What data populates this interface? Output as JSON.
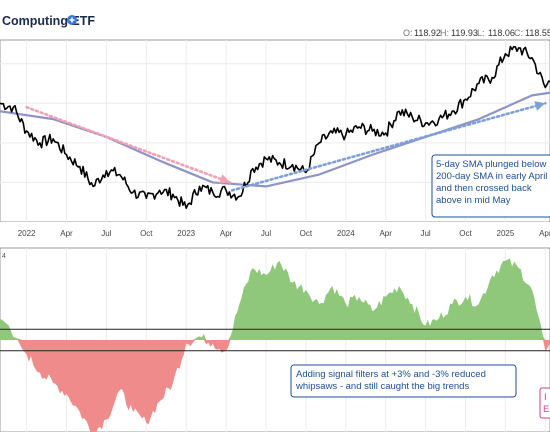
{
  "header": {
    "title": "Computing ETF",
    "ohlc": [
      {
        "key": "O:",
        "value": "118.92"
      },
      {
        "key": "H:",
        "value": "119.93"
      },
      {
        "key": "L:",
        "value": "118.06"
      },
      {
        "key": "C:",
        "value": "118.55"
      }
    ]
  },
  "annotations": {
    "price_box": [
      "5-day SMA plunged below",
      "200-day SMA in early April",
      "and then crossed back",
      "above in mid May"
    ],
    "osc_box": [
      "Adding signal filters at +3% and -3% reduced",
      "whipsaws - and still caught the big trends"
    ],
    "corner_box": [
      "I",
      "E"
    ]
  },
  "pane_tag": "4",
  "colors": {
    "price": "#000000",
    "sma200": "#8e93c8",
    "arrow_down": "#f4a0b4",
    "arrow_up": "#7da0d8",
    "osc_pos": "#8fc87a",
    "osc_neg": "#f08b8b",
    "annotation": "#1d4f91"
  },
  "chart_data": [
    {
      "type": "line",
      "x_ticks": [
        "2022",
        "Apr",
        "Jul",
        "Oct",
        "2023",
        "Apr",
        "Jul",
        "Oct",
        "2024",
        "Apr",
        "Jul",
        "Oct",
        "2025",
        "Apr"
      ],
      "series": [
        {
          "role": "price",
          "dates": [
            "2021-11",
            "2021-12",
            "2022-01",
            "2022-02",
            "2022-03",
            "2022-04",
            "2022-05",
            "2022-06",
            "2022-07",
            "2022-08",
            "2022-09",
            "2022-10",
            "2022-11",
            "2022-12",
            "2023-01",
            "2023-02",
            "2023-03",
            "2023-04",
            "2023-05",
            "2023-06",
            "2023-07",
            "2023-08",
            "2023-09",
            "2023-10",
            "2023-11",
            "2023-12",
            "2024-01",
            "2024-02",
            "2024-03",
            "2024-04",
            "2024-05",
            "2024-06",
            "2024-07",
            "2024-08",
            "2024-09",
            "2024-10",
            "2024-11",
            "2024-12",
            "2025-01",
            "2025-02",
            "2025-03",
            "2025-04",
            "2025-05"
          ],
          "values": [
            100,
            98,
            86,
            80,
            82,
            74,
            68,
            58,
            66,
            64,
            55,
            52,
            56,
            54,
            47,
            58,
            55,
            56,
            53,
            67,
            72,
            70,
            69,
            65,
            80,
            85,
            84,
            88,
            86,
            85,
            96,
            93,
            90,
            92,
            96,
            102,
            110,
            113,
            125,
            128,
            123,
            108,
            118
          ]
        },
        {
          "role": "sma200",
          "dates": [
            "2021-11",
            "2022-03",
            "2022-07",
            "2022-11",
            "2023-03",
            "2023-07",
            "2023-11",
            "2024-03",
            "2024-07",
            "2024-11",
            "2025-03",
            "2025-05"
          ],
          "values": [
            96,
            92,
            83,
            71,
            60,
            58,
            64,
            74,
            83,
            92,
            104,
            106
          ]
        }
      ]
    },
    {
      "type": "area",
      "ylim": [
        -25,
        25
      ],
      "thresholds": [
        3,
        -3
      ],
      "dates": [
        "2021-11",
        "2022-01",
        "2022-02",
        "2022-03",
        "2022-04",
        "2022-05",
        "2022-06",
        "2022-07",
        "2022-08",
        "2022-09",
        "2022-10",
        "2022-11",
        "2022-12",
        "2023-01",
        "2023-02",
        "2023-03",
        "2023-04",
        "2023-05",
        "2023-06",
        "2023-07",
        "2023-08",
        "2023-09",
        "2023-10",
        "2023-11",
        "2023-12",
        "2024-01",
        "2024-02",
        "2024-03",
        "2024-04",
        "2024-05",
        "2024-06",
        "2024-07",
        "2024-08",
        "2024-09",
        "2024-10",
        "2024-11",
        "2024-12",
        "2025-01",
        "2025-02",
        "2025-03",
        "2025-04",
        "2025-05"
      ],
      "values": [
        6,
        -4,
        -9,
        -12,
        -15,
        -20,
        -26,
        -22,
        -14,
        -20,
        -23,
        -17,
        -12,
        -1,
        1,
        -1,
        -3,
        10,
        20,
        18,
        22,
        16,
        14,
        10,
        15,
        10,
        12,
        8,
        12,
        15,
        10,
        4,
        6,
        10,
        12,
        10,
        18,
        22,
        20,
        14,
        -3,
        6
      ]
    }
  ]
}
